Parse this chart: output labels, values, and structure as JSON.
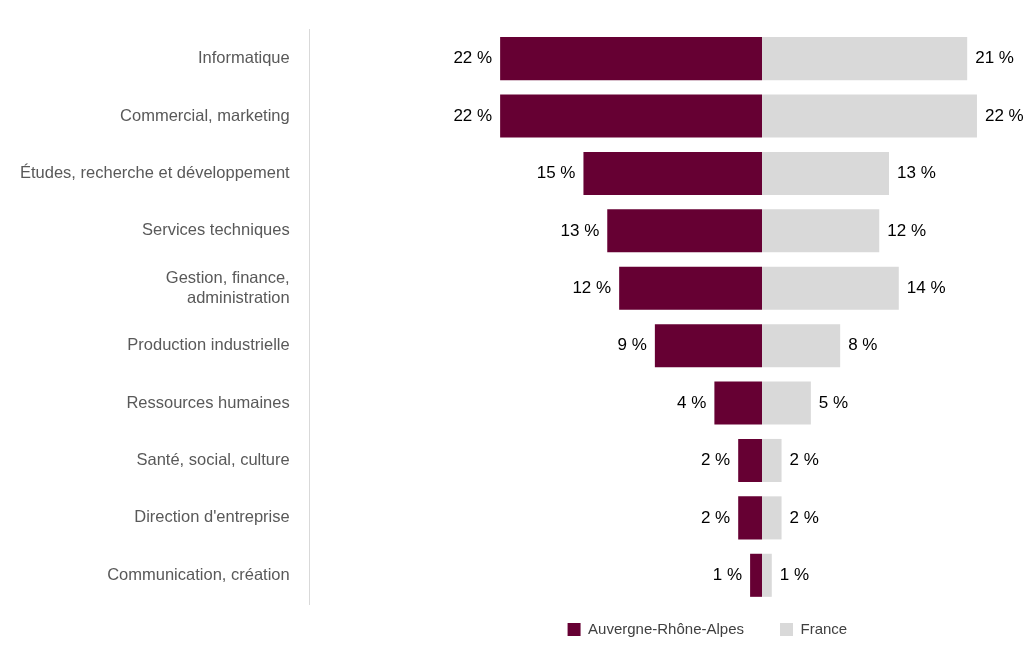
{
  "chart_data": [
    {
      "type": "bar",
      "orientation": "horizontal",
      "categories": [
        "Informatique",
        "Commercial, marketing",
        "Études, recherche et développement",
        "Services techniques",
        "Gestion, finance,\nadministration",
        "Production industrielle",
        "Ressources humaines",
        "Santé, social, culture",
        "Direction d'entreprise",
        "Communication, création"
      ],
      "series": [
        {
          "name": "Auvergne-Rhône-Alpes",
          "color": "#660033",
          "values": [
            22,
            22,
            15,
            13,
            12,
            9,
            4,
            2,
            2,
            1
          ],
          "value_labels": [
            "22 %",
            "22 %",
            "15 %",
            "13 %",
            "12 %",
            "9 %",
            "4 %",
            "2 %",
            "2 %",
            "1 %"
          ]
        }
      ],
      "xlim": [
        38,
        0
      ],
      "legend": "bottom",
      "tick_labels": "y"
    },
    {
      "type": "bar",
      "orientation": "horizontal",
      "categories": [
        null,
        null,
        null,
        null,
        null,
        null,
        null,
        null,
        null,
        null
      ],
      "series": [
        {
          "name": "France",
          "color": "#d9d9d9",
          "values": [
            21,
            22,
            13,
            12,
            14,
            8,
            5,
            2,
            2,
            1
          ],
          "value_labels": [
            "21 %",
            "22 %",
            "13 %",
            "12 %",
            "14 %",
            "8 %",
            "5 %",
            "2 %",
            "2 %",
            "1 %"
          ]
        }
      ],
      "legend": "bottom",
      "tick_labels": false
    }
  ]
}
